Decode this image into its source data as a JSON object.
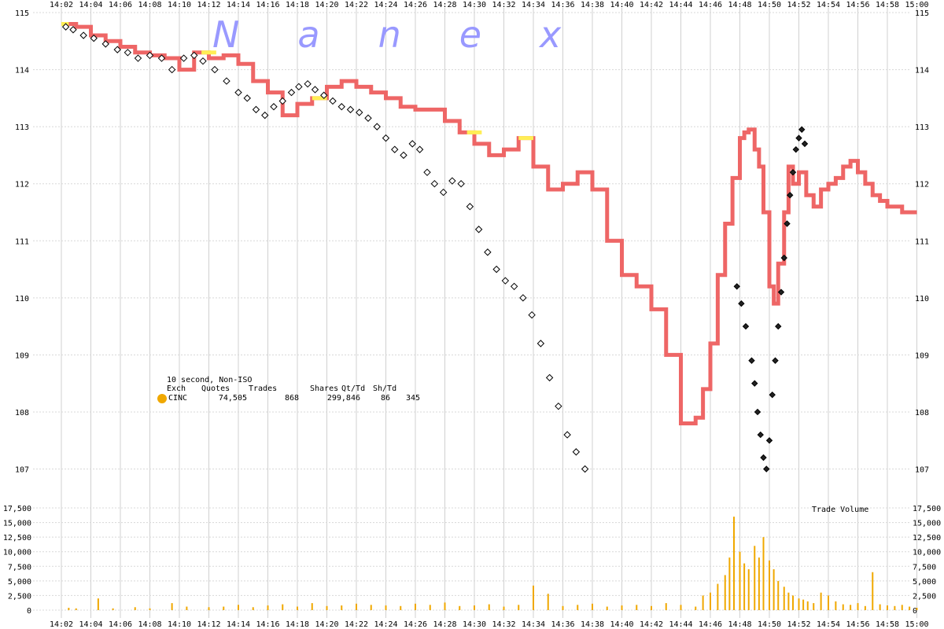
{
  "chart_data": {
    "type": "line",
    "watermark": "N a n e x",
    "watermark_color": "#9999ff",
    "x_tick_labels": [
      "14:02",
      "14:04",
      "14:06",
      "14:08",
      "14:10",
      "14:12",
      "14:14",
      "14:16",
      "14:18",
      "14:20",
      "14:22",
      "14:24",
      "14:26",
      "14:28",
      "14:30",
      "14:32",
      "14:34",
      "14:36",
      "14:38",
      "14:40",
      "14:42",
      "14:44",
      "14:46",
      "14:48",
      "14:50",
      "14:52",
      "14:54",
      "14:56",
      "14:58",
      "15:00"
    ],
    "price_axis": {
      "ylim": [
        106.4,
        115.0
      ],
      "ticks": [
        107,
        108,
        109,
        110,
        111,
        112,
        113,
        114,
        115
      ],
      "grid": true
    },
    "price_series": {
      "name": "quote",
      "color": "#ee6666",
      "x_minutes": [
        0,
        1,
        2,
        3,
        4,
        5,
        6,
        7,
        8,
        9,
        10,
        11,
        12,
        13,
        14,
        15,
        16,
        17,
        18,
        19,
        20,
        21,
        22,
        23,
        24,
        25,
        26,
        27,
        28,
        29,
        30,
        31,
        32,
        33,
        34,
        35,
        36,
        37,
        38,
        39,
        40,
        41,
        42,
        43,
        43.5,
        44,
        44.5,
        45,
        45.5,
        46,
        46.3,
        46.6,
        47,
        47.3,
        47.6,
        48,
        48.3,
        48.6,
        49,
        49.3,
        49.6,
        50,
        50.5,
        51,
        51.5,
        52,
        52.5,
        53,
        53.5,
        54,
        54.5,
        55,
        55.5,
        56,
        56.5,
        57,
        57.5,
        58
      ],
      "values": [
        114.8,
        114.75,
        114.6,
        114.5,
        114.4,
        114.3,
        114.25,
        114.2,
        114.0,
        114.3,
        114.2,
        114.25,
        114.1,
        113.8,
        113.6,
        113.2,
        113.4,
        113.5,
        113.7,
        113.8,
        113.7,
        113.6,
        113.5,
        113.35,
        113.3,
        113.3,
        113.1,
        112.9,
        112.7,
        112.5,
        112.6,
        112.8,
        112.3,
        111.9,
        112.0,
        112.2,
        111.9,
        111.0,
        110.4,
        110.2,
        109.8,
        109.0,
        107.8,
        107.9,
        108.4,
        109.2,
        110.4,
        111.3,
        112.1,
        112.8,
        112.9,
        112.95,
        112.6,
        112.3,
        111.5,
        110.2,
        109.9,
        110.6,
        111.5,
        112.3,
        112.0,
        112.2,
        111.8,
        111.6,
        111.9,
        112.0,
        112.1,
        112.3,
        112.4,
        112.2,
        112.0,
        111.8,
        111.7,
        111.6,
        111.6,
        111.5,
        111.5,
        111.5
      ],
      "yellow_segments": [
        [
          0,
          0.5
        ],
        [
          9.5,
          10.5
        ],
        [
          17,
          18
        ],
        [
          27.5,
          28.5
        ],
        [
          31,
          32
        ]
      ]
    },
    "trade_points": {
      "x_minutes": [
        0.3,
        0.8,
        1.5,
        2.2,
        3.0,
        3.8,
        4.5,
        5.2,
        6.0,
        6.8,
        7.5,
        8.3,
        9.0,
        9.6,
        10.4,
        11.2,
        12.0,
        12.6,
        13.2,
        13.8,
        14.4,
        15.0,
        15.6,
        16.1,
        16.7,
        17.2,
        17.8,
        18.4,
        19.0,
        19.6,
        20.2,
        20.8,
        21.4,
        22.0,
        22.6,
        23.2,
        23.8,
        24.3,
        24.8,
        25.3,
        25.9,
        26.5,
        27.1,
        27.7,
        28.3,
        28.9,
        29.5,
        30.1,
        30.7,
        31.3,
        31.9,
        32.5,
        33.1,
        33.7,
        34.3,
        34.9,
        35.5
      ],
      "values": [
        114.75,
        114.7,
        114.6,
        114.55,
        114.45,
        114.35,
        114.3,
        114.2,
        114.25,
        114.2,
        114.0,
        114.2,
        114.25,
        114.15,
        114.0,
        113.8,
        113.6,
        113.5,
        113.3,
        113.2,
        113.35,
        113.45,
        113.6,
        113.7,
        113.75,
        113.65,
        113.55,
        113.45,
        113.35,
        113.3,
        113.25,
        113.15,
        113.0,
        112.8,
        112.6,
        112.5,
        112.7,
        112.6,
        112.2,
        112.0,
        111.85,
        112.05,
        112.0,
        111.6,
        111.2,
        110.8,
        110.5,
        110.3,
        110.2,
        110.0,
        109.7,
        109.2,
        108.6,
        108.1,
        107.6,
        107.3,
        107.0
      ]
    },
    "volume_axis": {
      "ylim": [
        0,
        17500
      ],
      "ticks": [
        0,
        2500,
        5000,
        7500,
        10000,
        12500,
        15000,
        17500
      ],
      "tick_labels": [
        "0",
        "2,500",
        "5,000",
        "7,500",
        "10,000",
        "12,500",
        "15,000",
        "17,500"
      ],
      "title": "Trade Volume",
      "bar_color": "#f0a800"
    },
    "volume_series": {
      "x_minutes": [
        0.5,
        1.0,
        2.5,
        3.5,
        5.0,
        6.0,
        7.5,
        8.5,
        10.0,
        11.0,
        12.0,
        13.0,
        14.0,
        15.0,
        16.0,
        17.0,
        18.0,
        19.0,
        20.0,
        21.0,
        22.0,
        23.0,
        24.0,
        25.0,
        26.0,
        27.0,
        28.0,
        29.0,
        30.0,
        31.0,
        32.0,
        33.0,
        34.0,
        35.0,
        36.0,
        37.0,
        38.0,
        39.0,
        40.0,
        41.0,
        42.0,
        43.0,
        43.5,
        44.0,
        44.5,
        45.0,
        45.3,
        45.6,
        46.0,
        46.3,
        46.6,
        47.0,
        47.3,
        47.6,
        48.0,
        48.3,
        48.6,
        49.0,
        49.3,
        49.6,
        50.0,
        50.3,
        50.6,
        51.0,
        51.5,
        52.0,
        52.5,
        53.0,
        53.5,
        54.0,
        54.5,
        55.0,
        55.5,
        56.0,
        56.5,
        57.0,
        57.5,
        58.0
      ],
      "values": [
        400,
        300,
        2000,
        300,
        500,
        300,
        1200,
        600,
        500,
        600,
        900,
        500,
        800,
        1000,
        600,
        1200,
        700,
        800,
        1100,
        900,
        800,
        700,
        1100,
        900,
        1300,
        700,
        800,
        1000,
        600,
        900,
        4200,
        2800,
        700,
        900,
        1100,
        600,
        800,
        900,
        700,
        1200,
        900,
        600,
        2500,
        3000,
        4500,
        6000,
        9000,
        16000,
        10000,
        8000,
        7000,
        11000,
        9000,
        12500,
        8500,
        7000,
        5000,
        4000,
        3000,
        2500,
        2000,
        1800,
        1500,
        1200,
        3000,
        2500,
        1500,
        1000,
        900,
        1200,
        700,
        6500,
        1000,
        800,
        700,
        900,
        600,
        400
      ]
    },
    "legend": {
      "title": "10 second, Non-ISO",
      "headers": [
        "Exch",
        "Quotes",
        "Trades",
        "Shares",
        "Qt/Td",
        "Sh/Td"
      ],
      "row": [
        "CINC",
        "74,505",
        "868",
        "299,846",
        "86",
        "345"
      ],
      "dot_color": "#f0a800"
    }
  }
}
